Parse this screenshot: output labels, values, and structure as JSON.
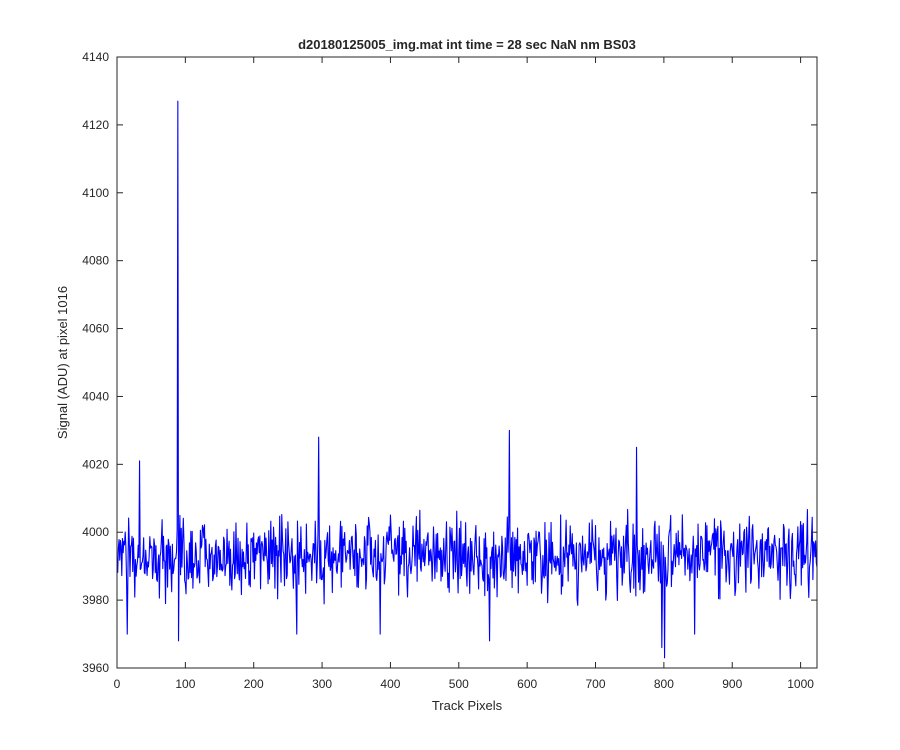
{
  "chart_data": {
    "type": "line",
    "title": "d20180125005_img.mat int time = 28 sec  NaN nm BS03",
    "xlabel": "Track Pixels",
    "ylabel": "Signal (ADU) at pixel 1016",
    "xlim": [
      0,
      1024
    ],
    "ylim": [
      3960,
      4140
    ],
    "xticks": [
      0,
      100,
      200,
      300,
      400,
      500,
      600,
      700,
      800,
      900,
      1000
    ],
    "yticks": [
      3960,
      3980,
      4000,
      4020,
      4040,
      4060,
      4080,
      4100,
      4120,
      4140
    ],
    "grid": false,
    "legend": "none",
    "series": [
      {
        "color": "#0000ff",
        "x_start": 1,
        "x_step": 1,
        "n_points": 1024,
        "baseline": 3993,
        "noise_amplitude": 10,
        "noise_seed": 20180125,
        "peaks": [
          {
            "x": 33,
            "y": 4021
          },
          {
            "x": 89,
            "y": 4127
          },
          {
            "x": 295,
            "y": 4028
          },
          {
            "x": 574,
            "y": 4030
          },
          {
            "x": 760,
            "y": 4025
          },
          {
            "x": 90,
            "y": 3968
          },
          {
            "x": 15,
            "y": 3970
          },
          {
            "x": 385,
            "y": 3970
          },
          {
            "x": 545,
            "y": 3968
          },
          {
            "x": 797,
            "y": 3966
          },
          {
            "x": 801,
            "y": 3963
          },
          {
            "x": 845,
            "y": 3970
          },
          {
            "x": 263,
            "y": 3970
          }
        ]
      }
    ]
  }
}
